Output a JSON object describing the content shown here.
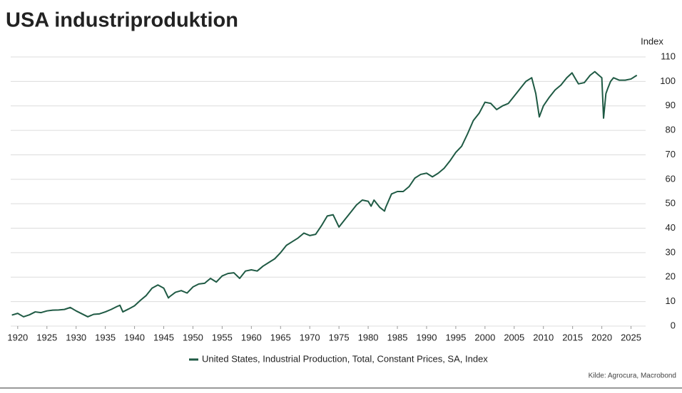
{
  "chart_data": {
    "type": "line",
    "title": "USA industriproduktion",
    "y_axis_label": "Index",
    "source": "Kilde: Agrocura, Macrobond",
    "x": [
      1919,
      1920,
      1921,
      1922,
      1923,
      1924,
      1925,
      1926,
      1927,
      1928,
      1929,
      1930,
      1931,
      1932,
      1933,
      1934,
      1935,
      1936,
      1937,
      1937.5,
      1938,
      1939,
      1940,
      1941,
      1942,
      1943,
      1944,
      1945,
      1945.8,
      1946,
      1947,
      1948,
      1949,
      1950,
      1951,
      1952,
      1953,
      1954,
      1955,
      1956,
      1957,
      1958,
      1959,
      1960,
      1961,
      1962,
      1963,
      1964,
      1965,
      1966,
      1967,
      1968,
      1969,
      1970,
      1971,
      1972,
      1973,
      1974,
      1975,
      1976,
      1977,
      1978,
      1979,
      1980,
      1980.5,
      1981,
      1982,
      1982.8,
      1983,
      1984,
      1985,
      1986,
      1987,
      1988,
      1989,
      1990,
      1991,
      1992,
      1993,
      1994,
      1995,
      1996,
      1997,
      1998,
      1999,
      2000,
      2001,
      2002,
      2003,
      2004,
      2005,
      2006,
      2007,
      2008,
      2008.7,
      2009.3,
      2010,
      2011,
      2012,
      2013,
      2014,
      2014.9,
      2015.5,
      2016,
      2017,
      2018,
      2018.8,
      2019.5,
      2020,
      2020.3,
      2020.7,
      2021,
      2021.5,
      2022,
      2023,
      2024,
      2025,
      2026
    ],
    "series": [
      {
        "name": "United States, Industrial Production, Total, Constant Prices, SA, Index",
        "color": "#1f5a44",
        "values": [
          4.5,
          5.2,
          3.8,
          4.6,
          5.8,
          5.5,
          6.2,
          6.5,
          6.6,
          6.8,
          7.6,
          6.2,
          5.0,
          3.8,
          4.8,
          5.0,
          5.8,
          6.8,
          8.0,
          8.5,
          5.8,
          7.0,
          8.3,
          10.5,
          12.5,
          15.5,
          16.8,
          15.5,
          11.5,
          12,
          13.8,
          14.5,
          13.5,
          16,
          17.2,
          17.5,
          19.5,
          18,
          20.5,
          21.5,
          21.8,
          19.5,
          22.5,
          23,
          22.5,
          24.5,
          26,
          27.5,
          30,
          33,
          34.5,
          36,
          38,
          37,
          37.5,
          41,
          45,
          45.5,
          40.5,
          43.5,
          46.5,
          49.5,
          51.5,
          51,
          49,
          51.5,
          48.5,
          47,
          48.5,
          54,
          55,
          55,
          57,
          60.5,
          62,
          62.5,
          61,
          62.5,
          64.5,
          67.5,
          71,
          73.5,
          78.5,
          84,
          87,
          91.5,
          91,
          88.5,
          90,
          91,
          94,
          97,
          100,
          101.5,
          95,
          85.5,
          90,
          93.5,
          96.5,
          98.5,
          101.5,
          103.5,
          101,
          99,
          99.5,
          102.5,
          104,
          102.5,
          101.5,
          85,
          95,
          97,
          100,
          101.5,
          100.5,
          100.5,
          101,
          102.5
        ]
      }
    ],
    "xlim": [
      1918.8,
      2027.5
    ],
    "xticks": [
      1920,
      1925,
      1930,
      1935,
      1940,
      1945,
      1950,
      1955,
      1960,
      1965,
      1970,
      1975,
      1980,
      1985,
      1990,
      1995,
      2000,
      2005,
      2010,
      2015,
      2020,
      2025
    ],
    "ylim": [
      0,
      110
    ],
    "yticks": [
      0,
      10,
      20,
      30,
      40,
      50,
      60,
      70,
      80,
      90,
      100,
      110
    ],
    "grid": true,
    "legend": "bottom"
  }
}
